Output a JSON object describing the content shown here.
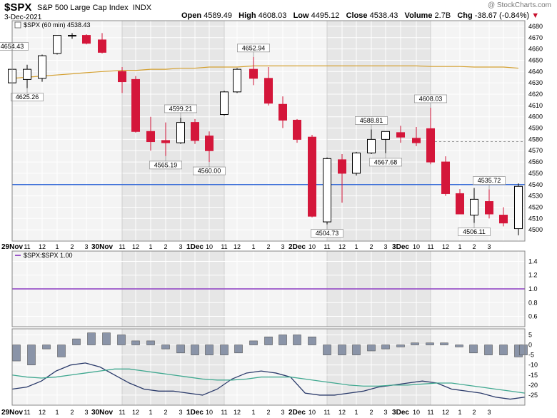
{
  "header": {
    "symbol": "$SPX",
    "name": "S&P 500 Large Cap Index",
    "exchange": "INDX",
    "date": "3-Dec-2021",
    "open_label": "Open",
    "open": "4589.49",
    "high_label": "High",
    "high": "4608.03",
    "low_label": "Low",
    "low": "4495.12",
    "close_label": "Close",
    "close": "4538.43",
    "volume_label": "Volume",
    "volume": "2.7B",
    "chg_label": "Chg",
    "chg": "-38.67 (-0.84%)",
    "watermark": "@ StockCharts.com"
  },
  "colors": {
    "up": "#ffffff",
    "down": "#d4163a",
    "ma": "#d4a030",
    "hline": "#3a6ed8",
    "ratio": "#9a55c8",
    "hist": "#8a94a8",
    "fast": "#2a3a6a",
    "slow": "#40a890"
  },
  "chart_data": [
    {
      "type": "candlestick",
      "title": "$SPX (60 min) 4538.43",
      "ylim": [
        4490,
        4685
      ],
      "yticks": [
        4500,
        4510,
        4520,
        4530,
        4540,
        4550,
        4560,
        4570,
        4580,
        4590,
        4600,
        4610,
        4620,
        4630,
        4640,
        4650,
        4660,
        4670,
        4680
      ],
      "grid": true,
      "horizontal_line": 4540,
      "x_sessions": [
        "29Nov",
        "30Nov",
        "1Dec",
        "2Dec",
        "3Dec"
      ],
      "x_labels": [
        "29Nov",
        "11",
        "12",
        "1",
        "2",
        "3",
        "30Nov",
        "11",
        "12",
        "1",
        "2",
        "3",
        "1Dec",
        "10",
        "11",
        "12",
        "1",
        "2",
        "3",
        "2Dec",
        "10",
        "11",
        "12",
        "1",
        "2",
        "3",
        "3Dec",
        "10",
        "11",
        "12",
        "1",
        "2",
        "3"
      ],
      "candles": [
        {
          "o": 4630,
          "h": 4654.43,
          "l": 4625,
          "c": 4642
        },
        {
          "o": 4633,
          "h": 4646,
          "l": 4625.26,
          "c": 4642
        },
        {
          "o": 4634,
          "h": 4655,
          "l": 4631,
          "c": 4654
        },
        {
          "o": 4656,
          "h": 4672,
          "l": 4655,
          "c": 4672
        },
        {
          "o": 4672,
          "h": 4674,
          "l": 4669,
          "c": 4672
        },
        {
          "o": 4672,
          "h": 4673,
          "l": 4664,
          "c": 4665
        },
        {
          "o": 4668,
          "h": 4674,
          "l": 4656,
          "c": 4657
        },
        {
          "o": 4640,
          "h": 4644,
          "l": 4621,
          "c": 4631
        },
        {
          "o": 4633,
          "h": 4636,
          "l": 4586,
          "c": 4587
        },
        {
          "o": 4587,
          "h": 4600,
          "l": 4570,
          "c": 4578
        },
        {
          "o": 4579,
          "h": 4595,
          "l": 4565.19,
          "c": 4577
        },
        {
          "o": 4577,
          "h": 4599.21,
          "l": 4576,
          "c": 4595
        },
        {
          "o": 4595,
          "h": 4598,
          "l": 4576,
          "c": 4579
        },
        {
          "o": 4583,
          "h": 4587,
          "l": 4560,
          "c": 4570
        },
        {
          "o": 4602,
          "h": 4623,
          "l": 4601,
          "c": 4622
        },
        {
          "o": 4622,
          "h": 4643,
          "l": 4621,
          "c": 4642
        },
        {
          "o": 4642,
          "h": 4652.94,
          "l": 4628,
          "c": 4634
        },
        {
          "o": 4634,
          "h": 4644,
          "l": 4610,
          "c": 4612
        },
        {
          "o": 4611,
          "h": 4618,
          "l": 4590,
          "c": 4597
        },
        {
          "o": 4597,
          "h": 4598,
          "l": 4577,
          "c": 4580
        },
        {
          "o": 4582,
          "h": 4584,
          "l": 4511,
          "c": 4512
        },
        {
          "o": 4507,
          "h": 4564,
          "l": 4504.73,
          "c": 4563
        },
        {
          "o": 4562,
          "h": 4567,
          "l": 4524,
          "c": 4550
        },
        {
          "o": 4550,
          "h": 4569,
          "l": 4548,
          "c": 4568
        },
        {
          "o": 4568,
          "h": 4588.81,
          "l": 4567,
          "c": 4580
        },
        {
          "o": 4580,
          "h": 4587,
          "l": 4567.68,
          "c": 4587
        },
        {
          "o": 4586,
          "h": 4592,
          "l": 4577,
          "c": 4582
        },
        {
          "o": 4581,
          "h": 4591,
          "l": 4574,
          "c": 4577
        },
        {
          "o": 4589.49,
          "h": 4608.03,
          "l": 4558,
          "c": 4560
        },
        {
          "o": 4560,
          "h": 4565,
          "l": 4530,
          "c": 4532
        },
        {
          "o": 4532,
          "h": 4536,
          "l": 4514,
          "c": 4514
        },
        {
          "o": 4513,
          "h": 4537,
          "l": 4506.11,
          "c": 4527
        },
        {
          "o": 4525,
          "h": 4535.72,
          "l": 4510,
          "c": 4514
        },
        {
          "o": 4513,
          "h": 4520,
          "l": 4503,
          "c": 4506
        },
        {
          "o": 4501,
          "h": 4541,
          "l": 4495.12,
          "c": 4538.43
        }
      ],
      "ma_line": [
        4634,
        4635,
        4636,
        4637,
        4638,
        4639,
        4640,
        4641,
        4641,
        4642,
        4642,
        4643,
        4643,
        4644,
        4644,
        4644,
        4645,
        4645,
        4645,
        4645,
        4645,
        4645,
        4645,
        4645,
        4645,
        4645,
        4645,
        4645,
        4644.5,
        4644.5,
        4644.5,
        4644,
        4644,
        4644,
        4643
      ],
      "annotations": [
        {
          "i": 0,
          "text": "4654.43",
          "at": "high"
        },
        {
          "i": 1,
          "text": "4625.26",
          "at": "low"
        },
        {
          "i": 10,
          "text": "4565.19",
          "at": "low"
        },
        {
          "i": 11,
          "text": "4599.21",
          "at": "high"
        },
        {
          "i": 13,
          "text": "4560.00",
          "at": "low"
        },
        {
          "i": 16,
          "text": "4652.94",
          "at": "high"
        },
        {
          "i": 21,
          "text": "4504.73",
          "at": "low"
        },
        {
          "i": 24,
          "text": "4588.81",
          "at": "high"
        },
        {
          "i": 25,
          "text": "4567.68",
          "at": "low"
        },
        {
          "i": 28,
          "text": "4608.03",
          "at": "high"
        },
        {
          "i": 31,
          "text": "4506.11",
          "at": "low"
        },
        {
          "i": 32,
          "text": "4535.72",
          "at": "high"
        }
      ],
      "dashed_level": 4578
    },
    {
      "type": "line",
      "title": "$SPX:$SPX 1.00",
      "ylim": [
        0.45,
        1.55
      ],
      "yticks": [
        0.6,
        0.8,
        1.0,
        1.2,
        1.4
      ],
      "values": 1.0
    },
    {
      "type": "bar+line",
      "ylim": [
        -30,
        8
      ],
      "yticks": [
        -25,
        -20,
        -15,
        -10,
        -5,
        0,
        5
      ],
      "histogram": [
        -8,
        -10,
        -2,
        -6,
        3,
        6,
        6,
        5,
        2,
        2,
        -2,
        -4,
        -5,
        -5,
        -5,
        -4,
        2,
        4,
        5,
        5,
        4,
        -5,
        -5,
        -5,
        -3,
        -2,
        -1,
        1,
        1,
        1,
        -1,
        -4,
        -5,
        -5,
        -6,
        -5
      ],
      "series": [
        {
          "values": [
            -22,
            -21,
            -18,
            -13,
            -10,
            -9,
            -11,
            -15,
            -19,
            -22,
            -23,
            -23,
            -24,
            -25,
            -22,
            -17,
            -14,
            -13,
            -14,
            -16,
            -24,
            -25,
            -25,
            -24,
            -23,
            -21,
            -20,
            -19,
            -18,
            -19,
            -22,
            -23,
            -24,
            -26,
            -27,
            -26
          ]
        },
        {
          "values": [
            -15,
            -16,
            -16.5,
            -16,
            -15,
            -14,
            -13,
            -12,
            -12,
            -13,
            -14,
            -15,
            -16,
            -17,
            -17.5,
            -17.5,
            -17,
            -16,
            -16,
            -16,
            -17,
            -18,
            -19,
            -20,
            -20.5,
            -20.5,
            -20,
            -20,
            -19.5,
            -19,
            -19,
            -20,
            -21,
            -22,
            -23,
            -24
          ]
        }
      ]
    }
  ]
}
